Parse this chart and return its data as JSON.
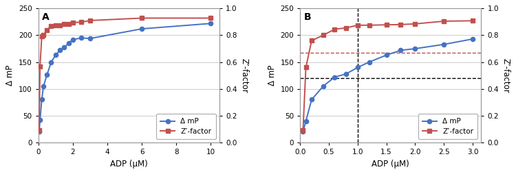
{
  "panel_A": {
    "label": "A",
    "delta_mP_x": [
      0.05,
      0.1,
      0.2,
      0.3,
      0.5,
      0.75,
      1.0,
      1.25,
      1.5,
      1.75,
      2.0,
      2.5,
      3.0,
      6.0,
      10.0
    ],
    "delta_mP_y": [
      20,
      42,
      80,
      105,
      126,
      150,
      163,
      172,
      177,
      185,
      192,
      195,
      194,
      212,
      222
    ],
    "zprime_x": [
      0.05,
      0.1,
      0.2,
      0.3,
      0.5,
      0.75,
      1.0,
      1.25,
      1.5,
      1.75,
      2.0,
      2.5,
      3.0,
      6.0,
      10.0
    ],
    "zprime_y": [
      0.09,
      0.57,
      0.79,
      0.8,
      0.84,
      0.87,
      0.875,
      0.876,
      0.882,
      0.883,
      0.895,
      0.898,
      0.91,
      0.928,
      0.928
    ],
    "xlim": [
      0,
      10.5
    ],
    "xticks": [
      0,
      2,
      4,
      6,
      8,
      10
    ],
    "ylim_left": [
      0,
      250
    ],
    "ylim_right": [
      0.0,
      1.0
    ],
    "yticks_left": [
      0,
      50,
      100,
      150,
      200,
      250
    ],
    "yticks_right": [
      0.0,
      0.2,
      0.4,
      0.6,
      0.8,
      1.0
    ],
    "xlabel": "ADP (μM)",
    "ylabel_left": "Δ mP",
    "ylabel_right": "Z’-factor"
  },
  "panel_B": {
    "label": "B",
    "delta_mP_x": [
      0.05,
      0.1,
      0.2,
      0.4,
      0.6,
      0.8,
      1.0,
      1.2,
      1.5,
      1.75,
      2.0,
      2.5,
      3.0
    ],
    "delta_mP_y": [
      20,
      40,
      80,
      105,
      122,
      128,
      140,
      150,
      163,
      172,
      175,
      183,
      193
    ],
    "zprime_x": [
      0.05,
      0.1,
      0.2,
      0.4,
      0.6,
      0.8,
      1.0,
      1.2,
      1.5,
      1.75,
      2.0,
      2.5,
      3.0
    ],
    "zprime_y": [
      0.09,
      0.56,
      0.76,
      0.8,
      0.845,
      0.855,
      0.875,
      0.875,
      0.878,
      0.88,
      0.885,
      0.905,
      0.908
    ],
    "xlim": [
      0,
      3.15
    ],
    "xticks": [
      0,
      0.5,
      1.0,
      1.5,
      2.0,
      2.5,
      3.0
    ],
    "ylim_left": [
      0,
      250
    ],
    "ylim_right": [
      0.0,
      1.0
    ],
    "yticks_left": [
      0,
      50,
      100,
      150,
      200,
      250
    ],
    "yticks_right": [
      0.0,
      0.2,
      0.4,
      0.6,
      0.8,
      1.0
    ],
    "xlabel": "ADP (μM)",
    "ylabel_left": "Δ mP",
    "ylabel_right": "Z’-factor",
    "vline_x": 1.0,
    "hline_black_y": 120,
    "hline_red_y": 168
  },
  "line_color_blue": "#4472C4",
  "line_color_red": "#C0504D",
  "markersize": 4.5,
  "linewidth": 1.4,
  "legend_fontsize": 7.5,
  "label_fontsize": 8.5,
  "tick_fontsize": 7.5,
  "panel_label_fontsize": 10
}
